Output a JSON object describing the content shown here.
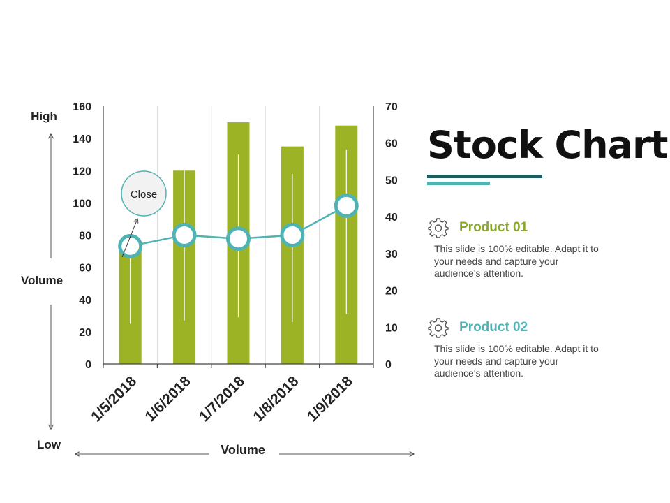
{
  "chart_data": {
    "type": "bar+line",
    "categories": [
      "1/5/2018",
      "1/6/2018",
      "1/7/2018",
      "1/8/2018",
      "1/9/2018"
    ],
    "series": [
      {
        "name": "Volume",
        "axis": "left",
        "kind": "bar",
        "values": [
          75,
          120,
          150,
          135,
          148
        ]
      },
      {
        "name": "Close",
        "axis": "right",
        "kind": "line",
        "values": [
          32,
          35,
          34,
          35,
          43
        ]
      },
      {
        "name": "High-Low",
        "axis": "left",
        "kind": "range",
        "high": [
          74,
          120,
          130,
          118,
          133
        ],
        "low": [
          25,
          27,
          29,
          26,
          31
        ]
      }
    ],
    "left_axis": {
      "ylim": [
        0,
        160
      ],
      "ticks": [
        0,
        20,
        40,
        60,
        80,
        100,
        120,
        140,
        160
      ]
    },
    "right_axis": {
      "ylim": [
        0,
        70
      ],
      "ticks": [
        0,
        10,
        20,
        30,
        40,
        50,
        60,
        70
      ]
    },
    "labels": {
      "high": "High",
      "low": "Low",
      "y_title": "Volume",
      "x_title": "Volume"
    },
    "callout": "Close",
    "colors": {
      "bar": "#9cb326",
      "line": "#4fb3b3",
      "axis": "#444444",
      "grid": "#dddddd"
    }
  },
  "title": "Stock Chart",
  "products": [
    {
      "title": "Product 01",
      "color": "#8aa829",
      "text": "This slide is 100% editable. Adapt it to your needs and capture your audience's attention."
    },
    {
      "title": "Product 02",
      "color": "#4fb3b3",
      "text": "This slide is 100% editable. Adapt it to your needs and capture your audience's attention."
    }
  ]
}
